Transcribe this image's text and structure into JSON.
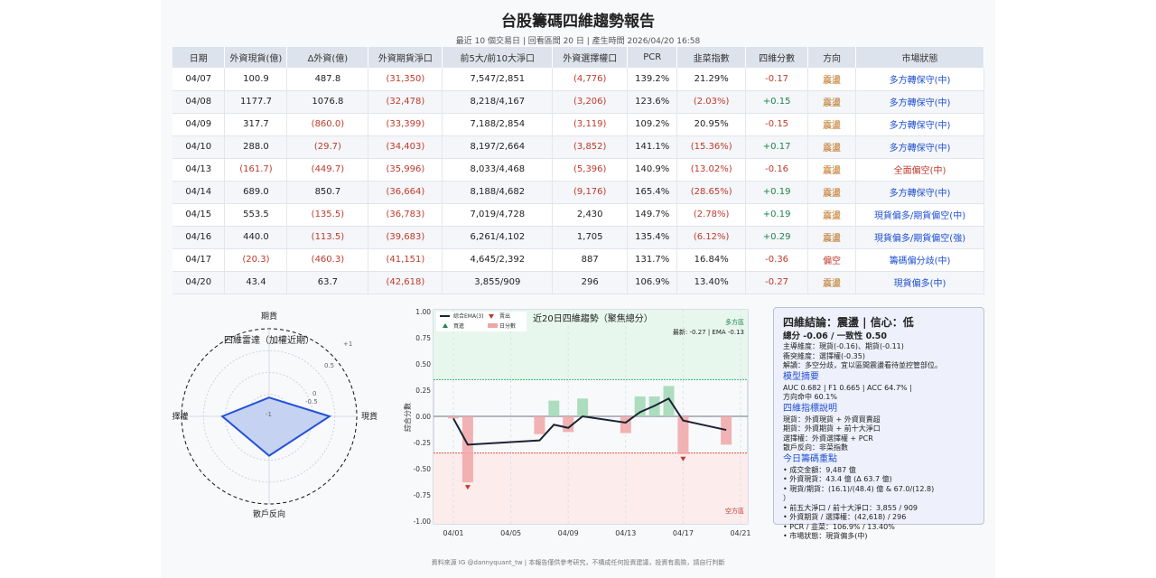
{
  "header": {
    "title": "台股籌碼四維趨勢報告",
    "subtitle": "最近 10 個交易日 | 回看區間 20 日 | 產生時間 2026/04/20 16:58"
  },
  "table": {
    "columns": [
      "日期",
      "外資現貨(億)",
      "Δ外資(億)",
      "外資期貨淨口",
      "前5大/前10大淨口",
      "外資選擇權口",
      "PCR",
      "韭菜指數",
      "四維分數",
      "方向",
      "市場狀態"
    ],
    "rows": [
      [
        "04/07",
        "100.9",
        "487.8",
        "(31,350)",
        "7,547/2,851",
        "(4,776)",
        "139.2%",
        "21.29%",
        "-0.17",
        "震盪",
        "多方轉保守(中)"
      ],
      [
        "04/08",
        "1177.7",
        "1076.8",
        "(32,478)",
        "8,218/4,167",
        "(3,206)",
        "123.6%",
        "(2.03%)",
        "+0.15",
        "震盪",
        "多方轉保守(中)"
      ],
      [
        "04/09",
        "317.7",
        "(860.0)",
        "(33,399)",
        "7,188/2,854",
        "(3,119)",
        "109.2%",
        "20.95%",
        "-0.15",
        "震盪",
        "多方轉保守(中)"
      ],
      [
        "04/10",
        "288.0",
        "(29.7)",
        "(34,403)",
        "8,197/2,664",
        "(3,852)",
        "141.1%",
        "(15.36%)",
        "+0.17",
        "震盪",
        "多方轉保守(中)"
      ],
      [
        "04/13",
        "(161.7)",
        "(449.7)",
        "(35,996)",
        "8,033/4,468",
        "(5,396)",
        "140.9%",
        "(13.02%)",
        "-0.16",
        "震盪",
        "全面偏空(中)"
      ],
      [
        "04/14",
        "689.0",
        "850.7",
        "(36,664)",
        "8,188/4,682",
        "(9,176)",
        "165.4%",
        "(28.65%)",
        "+0.19",
        "震盪",
        "多方轉保守(中)"
      ],
      [
        "04/15",
        "553.5",
        "(135.5)",
        "(36,783)",
        "7,019/4,728",
        "2,430",
        "149.7%",
        "(2.78%)",
        "+0.19",
        "震盪",
        "現貨偏多/期貨偏空(中)"
      ],
      [
        "04/16",
        "440.0",
        "(113.5)",
        "(39,683)",
        "6,261/4,102",
        "1,705",
        "135.4%",
        "(6.12%)",
        "+0.29",
        "震盪",
        "現貨偏多/期貨偏空(強)"
      ],
      [
        "04/17",
        "(20.3)",
        "(460.3)",
        "(41,151)",
        "4,645/2,392",
        "887",
        "131.7%",
        "16.84%",
        "-0.36",
        "偏空",
        "籌碼偏分歧(中)"
      ],
      [
        "04/20",
        "43.4",
        "63.7",
        "(42,618)",
        "3,855/909",
        "296",
        "106.9%",
        "13.40%",
        "-0.27",
        "震盪",
        "現貨偏多(中)"
      ]
    ]
  },
  "radar": {
    "title": "四維雷達（加權近期）",
    "axes": [
      "期貨",
      "現貨",
      "散戶反向",
      "選擇權"
    ],
    "values": [
      -0.57,
      0.38,
      -0.1,
      0.07
    ],
    "range": [
      -1,
      1
    ],
    "ring_labels": [
      "-1",
      "-0.5",
      "0",
      "0.5",
      "+1"
    ],
    "color": "#2451d6"
  },
  "chart_data": {
    "type": "bar+line",
    "title": "近20日四維趨勢（聚焦總分）",
    "ylabel": "綜合分數",
    "ylim": [
      -1,
      1
    ],
    "yticks": [
      "1.00",
      "0.75",
      "0.50",
      "0.25",
      "0.00",
      "-0.25",
      "-0.50",
      "-0.75",
      "-1.00"
    ],
    "xticks": [
      "04/01",
      "04/05",
      "04/09",
      "04/13",
      "04/17",
      "04/21"
    ],
    "dates": [
      "04/01",
      "04/02",
      "04/07",
      "04/08",
      "04/09",
      "04/10",
      "04/13",
      "04/14",
      "04/15",
      "04/16",
      "04/17",
      "04/20"
    ],
    "daily_score": [
      -0.02,
      -0.63,
      -0.17,
      0.15,
      -0.15,
      0.17,
      -0.16,
      0.19,
      0.19,
      0.29,
      -0.36,
      -0.27
    ],
    "ema": [
      -0.02,
      -0.27,
      -0.23,
      -0.08,
      -0.11,
      0.0,
      -0.06,
      0.04,
      0.1,
      0.17,
      -0.04,
      -0.13
    ],
    "sell_signals": [
      "04/02",
      "04/17"
    ],
    "thresholds": {
      "bull": 0.35,
      "bear": -0.35
    },
    "legend": [
      "綜合EMA(3)",
      "買進",
      "賣出",
      "日分數"
    ],
    "legend_position": "top-left",
    "zone_labels": {
      "bull": "多方區",
      "bear": "空方區"
    },
    "latest": "最新: -0.27 | EMA -0.13",
    "colors": {
      "ema": "#1b2433",
      "pos_bar": "#9fd8b4",
      "neg_bar": "#f0a6a6",
      "bull_zone": "#e8f7ee",
      "bear_zone": "#fcecec",
      "buy": "#1e8449",
      "sell": "#c0392b"
    }
  },
  "panel": {
    "title": "四維結論：震盪 | 信心：低",
    "score": "總分 -0.06 / 一致性 0.50",
    "lines": [
      "主導維度：現貨(-0.16)、期貨(-0.11)",
      "衝突維度：選擇權(-0.35)",
      "解讀：多空分歧，宜以區間震盪看待並控管部位。"
    ],
    "model_title": "模型摘要",
    "model_lines": [
      "AUC 0.682 | F1 0.665 | ACC 64.7% |",
      "方向命中 60.1%"
    ],
    "desc_title": "四維指標說明",
    "desc_lines": [
      "現貨：外資現貨 + 外資買賣超",
      "期貨：外資期貨 + 前十大淨口",
      "選擇權：外資選擇權 + PCR",
      "散戶反向：非菜指數"
    ],
    "today_title": "今日籌碼重點",
    "today_lines": [
      "• 成交金額：9,487 億",
      "• 外資現貨：43.4 億 (Δ 63.7 億)",
      "• 現貨/期貨：(16.1)/(48.4) 億 & 67.0/(12.8)",
      "）",
      "• 前五大淨口 / 前十大淨口：3,855 / 909",
      "• 外資期貨 / 選擇權：(42,618) / 296",
      "• PCR / 韭菜：106.9% / 13.40%",
      "• 市場狀態：現貨偏多(中)"
    ]
  },
  "footer": "資料來源 IG @dannyquant_tw | 本報告僅供參考研究，不構成任何投資建議，投資有風險，請自行判斷",
  "watermark": "IG @dannyquant_tw"
}
